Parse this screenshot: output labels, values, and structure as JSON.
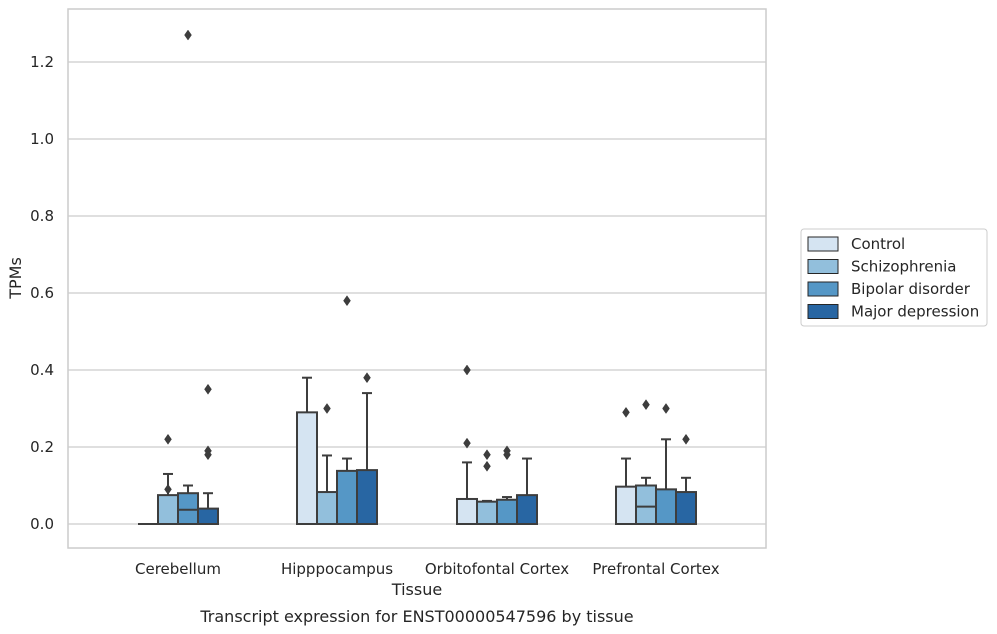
{
  "caption": "Transcript expression for ENST00000547596 by tissue",
  "chart_data": {
    "type": "box",
    "title": "",
    "xlabel": "Tissue",
    "ylabel": "TPMs",
    "ylim": [
      -0.06,
      1.34
    ],
    "yticks": [
      0.0,
      0.2,
      0.4,
      0.6,
      0.8,
      1.0,
      1.2
    ],
    "ytick_labels": [
      "0.0",
      "0.2",
      "0.4",
      "0.6",
      "0.8",
      "1.0",
      "1.2"
    ],
    "grid": "horizontal",
    "legend_position": "right",
    "categories": [
      "Cerebellum",
      "Hipppocampus",
      "Orbitofontal Cortex",
      "Prefrontal Cortex"
    ],
    "series": [
      {
        "name": "Control",
        "color": "#d5e4f2",
        "boxes": [
          {
            "min": 0.0,
            "q1": 0.0,
            "median": 0.0,
            "q3": 0.0,
            "max": 0.0,
            "outliers": []
          },
          {
            "min": 0.0,
            "q1": 0.0,
            "median": 0.0,
            "q3": 0.29,
            "max": 0.38,
            "outliers": []
          },
          {
            "min": 0.0,
            "q1": 0.0,
            "median": 0.0,
            "q3": 0.065,
            "max": 0.16,
            "outliers": [
              0.4,
              0.21
            ]
          },
          {
            "min": 0.0,
            "q1": 0.0,
            "median": 0.0,
            "q3": 0.097,
            "max": 0.17,
            "outliers": [
              0.29
            ]
          }
        ]
      },
      {
        "name": "Schizophrenia",
        "color": "#92bfdc",
        "boxes": [
          {
            "min": 0.0,
            "q1": 0.0,
            "median": 0.0,
            "q3": 0.075,
            "max": 0.13,
            "outliers": [
              0.22,
              0.09
            ]
          },
          {
            "min": 0.0,
            "q1": 0.0,
            "median": 0.0,
            "q3": 0.083,
            "max": 0.178,
            "outliers": [
              0.3
            ]
          },
          {
            "min": 0.0,
            "q1": 0.0,
            "median": 0.0,
            "q3": 0.058,
            "max": 0.06,
            "outliers": [
              0.18,
              0.15
            ]
          },
          {
            "min": 0.0,
            "q1": 0.0,
            "median": 0.045,
            "q3": 0.1,
            "max": 0.12,
            "outliers": [
              0.31
            ]
          }
        ]
      },
      {
        "name": "Bipolar disorder",
        "color": "#5597c6",
        "boxes": [
          {
            "min": 0.0,
            "q1": 0.0,
            "median": 0.037,
            "q3": 0.08,
            "max": 0.1,
            "outliers": [
              1.27
            ]
          },
          {
            "min": 0.0,
            "q1": 0.0,
            "median": 0.0,
            "q3": 0.138,
            "max": 0.17,
            "outliers": [
              0.58
            ]
          },
          {
            "min": 0.0,
            "q1": 0.0,
            "median": 0.0,
            "q3": 0.063,
            "max": 0.07,
            "outliers": [
              0.19,
              0.18
            ]
          },
          {
            "min": 0.0,
            "q1": 0.0,
            "median": 0.0,
            "q3": 0.09,
            "max": 0.22,
            "outliers": [
              0.3
            ]
          }
        ]
      },
      {
        "name": "Major depression",
        "color": "#2866a3",
        "boxes": [
          {
            "min": 0.0,
            "q1": 0.0,
            "median": 0.0,
            "q3": 0.04,
            "max": 0.08,
            "outliers": [
              0.35,
              0.19,
              0.18
            ]
          },
          {
            "min": 0.0,
            "q1": 0.0,
            "median": 0.0,
            "q3": 0.14,
            "max": 0.34,
            "outliers": [
              0.38
            ]
          },
          {
            "min": 0.0,
            "q1": 0.0,
            "median": 0.0,
            "q3": 0.075,
            "max": 0.17,
            "outliers": []
          },
          {
            "min": 0.0,
            "q1": 0.0,
            "median": 0.0,
            "q3": 0.083,
            "max": 0.12,
            "outliers": [
              0.22
            ]
          }
        ]
      }
    ]
  }
}
